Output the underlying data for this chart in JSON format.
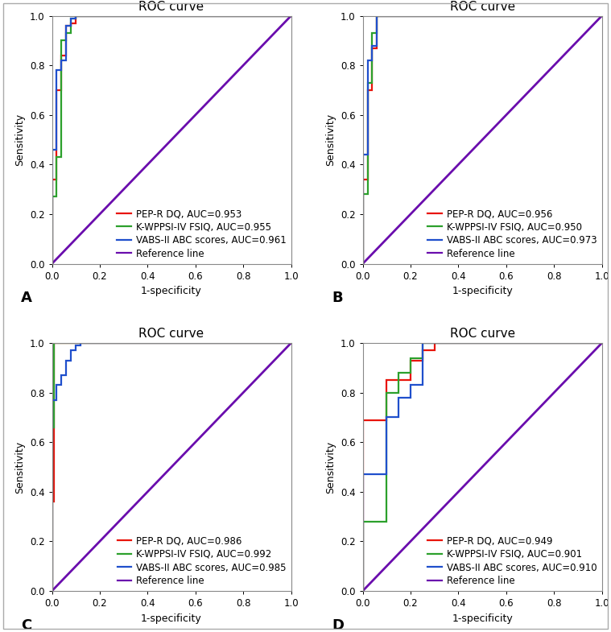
{
  "panels": [
    {
      "label": "A",
      "title": "ROC curve",
      "legend": [
        {
          "text": "PEP-R DQ, AUC=0.953",
          "color": "#e8140a"
        },
        {
          "text": "K-WPPSI-IV FSIQ, AUC=0.955",
          "color": "#2ca02c"
        },
        {
          "text": "VABS-II ABC scores, AUC=0.961",
          "color": "#1f4fcc"
        },
        {
          "text": "Reference line",
          "color": "#6a0dad"
        }
      ],
      "curves": [
        {
          "color": "#e8140a",
          "x": [
            0.0,
            0.0,
            0.02,
            0.02,
            0.04,
            0.04,
            0.06,
            0.06,
            0.08,
            0.08,
            0.1,
            0.1,
            1.0
          ],
          "y": [
            0.0,
            0.34,
            0.34,
            0.7,
            0.7,
            0.84,
            0.84,
            0.96,
            0.96,
            0.97,
            0.97,
            1.0,
            1.0
          ]
        },
        {
          "color": "#2ca02c",
          "x": [
            0.0,
            0.0,
            0.02,
            0.02,
            0.04,
            0.04,
            0.06,
            0.06,
            0.08,
            0.08,
            0.1,
            0.1,
            1.0
          ],
          "y": [
            0.0,
            0.27,
            0.27,
            0.43,
            0.43,
            0.9,
            0.9,
            0.93,
            0.93,
            0.99,
            0.99,
            1.0,
            1.0
          ]
        },
        {
          "color": "#1f4fcc",
          "x": [
            0.0,
            0.0,
            0.02,
            0.02,
            0.04,
            0.04,
            0.06,
            0.06,
            0.08,
            0.08,
            0.1,
            0.1,
            1.0
          ],
          "y": [
            0.0,
            0.46,
            0.46,
            0.78,
            0.78,
            0.82,
            0.82,
            0.96,
            0.96,
            0.99,
            0.99,
            1.0,
            1.0
          ]
        }
      ]
    },
    {
      "label": "B",
      "title": "ROC curve",
      "legend": [
        {
          "text": "PEP-R DQ, AUC=0.956",
          "color": "#e8140a"
        },
        {
          "text": "K-WPPSI-IV FSIQ, AUC=0.950",
          "color": "#2ca02c"
        },
        {
          "text": "VABS-II ABC scores, AUC=0.973",
          "color": "#1f4fcc"
        },
        {
          "text": "Reference line",
          "color": "#6a0dad"
        }
      ],
      "curves": [
        {
          "color": "#e8140a",
          "x": [
            0.0,
            0.0,
            0.02,
            0.02,
            0.04,
            0.04,
            0.06,
            0.06,
            0.1,
            0.1,
            1.0
          ],
          "y": [
            0.0,
            0.34,
            0.34,
            0.7,
            0.7,
            0.87,
            0.87,
            1.0,
            1.0,
            1.0,
            1.0
          ]
        },
        {
          "color": "#2ca02c",
          "x": [
            0.0,
            0.0,
            0.02,
            0.02,
            0.04,
            0.04,
            0.06,
            0.06,
            0.1,
            0.1,
            1.0
          ],
          "y": [
            0.0,
            0.28,
            0.28,
            0.73,
            0.73,
            0.93,
            0.93,
            1.0,
            1.0,
            1.0,
            1.0
          ]
        },
        {
          "color": "#1f4fcc",
          "x": [
            0.0,
            0.0,
            0.02,
            0.02,
            0.04,
            0.04,
            0.06,
            0.06,
            0.1,
            0.1,
            1.0
          ],
          "y": [
            0.0,
            0.44,
            0.44,
            0.82,
            0.82,
            0.88,
            0.88,
            1.0,
            1.0,
            1.0,
            1.0
          ]
        }
      ]
    },
    {
      "label": "C",
      "title": "ROC curve",
      "legend": [
        {
          "text": "PEP-R DQ, AUC=0.986",
          "color": "#e8140a"
        },
        {
          "text": "K-WPPSI-IV FSIQ, AUC=0.992",
          "color": "#2ca02c"
        },
        {
          "text": "VABS-II ABC scores, AUC=0.985",
          "color": "#1f4fcc"
        },
        {
          "text": "Reference line",
          "color": "#6a0dad"
        }
      ],
      "curves": [
        {
          "color": "#e8140a",
          "x": [
            0.0,
            0.0,
            0.01,
            0.01,
            0.03,
            0.03,
            1.0
          ],
          "y": [
            0.0,
            0.36,
            0.36,
            1.0,
            1.0,
            1.0,
            1.0
          ]
        },
        {
          "color": "#2ca02c",
          "x": [
            0.0,
            0.0,
            0.01,
            0.01,
            1.0
          ],
          "y": [
            0.0,
            0.66,
            0.66,
            1.0,
            1.0
          ]
        },
        {
          "color": "#1f4fcc",
          "x": [
            0.0,
            0.0,
            0.02,
            0.02,
            0.04,
            0.04,
            0.06,
            0.06,
            0.08,
            0.08,
            0.1,
            0.1,
            0.12,
            0.12,
            1.0
          ],
          "y": [
            0.0,
            0.77,
            0.77,
            0.83,
            0.83,
            0.87,
            0.87,
            0.93,
            0.93,
            0.97,
            0.97,
            0.99,
            0.99,
            1.0,
            1.0
          ]
        }
      ]
    },
    {
      "label": "D",
      "title": "ROC curve",
      "legend": [
        {
          "text": "PEP-R DQ, AUC=0.949",
          "color": "#e8140a"
        },
        {
          "text": "K-WPPSI-IV FSIQ, AUC=0.901",
          "color": "#2ca02c"
        },
        {
          "text": "VABS-II ABC scores, AUC=0.910",
          "color": "#1f4fcc"
        },
        {
          "text": "Reference line",
          "color": "#6a0dad"
        }
      ],
      "curves": [
        {
          "color": "#e8140a",
          "x": [
            0.0,
            0.0,
            0.1,
            0.1,
            0.2,
            0.2,
            0.25,
            0.25,
            0.3,
            0.3,
            0.35,
            0.35,
            1.0
          ],
          "y": [
            0.0,
            0.69,
            0.69,
            0.85,
            0.85,
            0.93,
            0.93,
            0.97,
            0.97,
            1.0,
            1.0,
            1.0,
            1.0
          ]
        },
        {
          "color": "#2ca02c",
          "x": [
            0.0,
            0.0,
            0.1,
            0.1,
            0.15,
            0.15,
            0.2,
            0.2,
            0.25,
            0.25,
            0.3,
            0.3,
            1.0
          ],
          "y": [
            0.0,
            0.28,
            0.28,
            0.8,
            0.8,
            0.88,
            0.88,
            0.94,
            0.94,
            1.0,
            1.0,
            1.0,
            1.0
          ]
        },
        {
          "color": "#1f4fcc",
          "x": [
            0.0,
            0.0,
            0.1,
            0.1,
            0.15,
            0.15,
            0.2,
            0.2,
            0.25,
            0.25,
            1.0
          ],
          "y": [
            0.0,
            0.47,
            0.47,
            0.7,
            0.7,
            0.78,
            0.78,
            0.83,
            0.83,
            1.0,
            1.0
          ]
        }
      ]
    }
  ],
  "xlabel": "1-specificity",
  "ylabel": "Sensitivity",
  "xlim": [
    0.0,
    1.0
  ],
  "ylim": [
    0.0,
    1.0
  ],
  "xticks": [
    0.0,
    0.2,
    0.4,
    0.6,
    0.8,
    1.0
  ],
  "yticks": [
    0.0,
    0.2,
    0.4,
    0.6,
    0.8,
    1.0
  ],
  "reference_color": "#6a0dad",
  "background_color": "#ffffff",
  "border_color": "#888888",
  "linewidth": 1.6,
  "ref_linewidth": 2.0,
  "title_fontsize": 11,
  "label_fontsize": 9,
  "tick_fontsize": 8.5,
  "legend_fontsize": 8.5
}
